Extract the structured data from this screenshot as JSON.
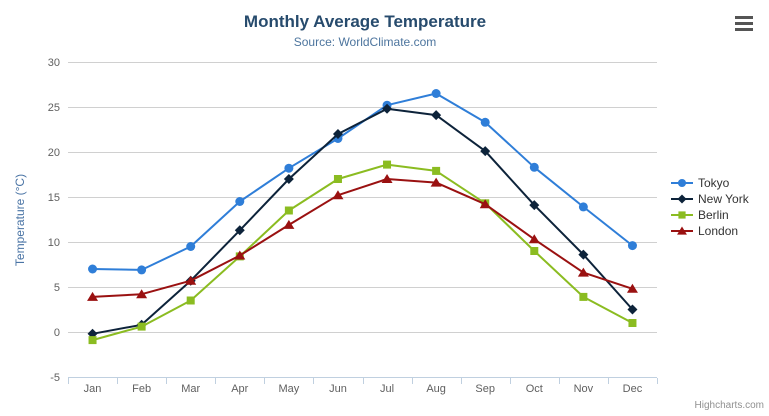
{
  "chart_data": {
    "type": "line",
    "title": "Monthly Average Temperature",
    "subtitle": "Source: WorldClimate.com",
    "xlabel": "",
    "ylabel": "Temperature (°C)",
    "ylim": [
      -5,
      30
    ],
    "yticks": [
      -5,
      0,
      5,
      10,
      15,
      20,
      25,
      30
    ],
    "grid": "horizontal",
    "legend_position": "right",
    "categories": [
      "Jan",
      "Feb",
      "Mar",
      "Apr",
      "May",
      "Jun",
      "Jul",
      "Aug",
      "Sep",
      "Oct",
      "Nov",
      "Dec"
    ],
    "series": [
      {
        "name": "Tokyo",
        "marker": "circle",
        "color": "#2f7ed8",
        "values": [
          7.0,
          6.9,
          9.5,
          14.5,
          18.2,
          21.5,
          25.2,
          26.5,
          23.3,
          18.3,
          13.9,
          9.6
        ]
      },
      {
        "name": "New York",
        "marker": "diamond",
        "color": "#0d233a",
        "values": [
          -0.2,
          0.8,
          5.7,
          11.3,
          17.0,
          22.0,
          24.8,
          24.1,
          20.1,
          14.1,
          8.6,
          2.5
        ]
      },
      {
        "name": "Berlin",
        "marker": "square",
        "color": "#8bbc21",
        "values": [
          -0.9,
          0.6,
          3.5,
          8.4,
          13.5,
          17.0,
          18.6,
          17.9,
          14.3,
          9.0,
          3.9,
          1.0
        ]
      },
      {
        "name": "London",
        "marker": "triangle",
        "color": "#9a1111",
        "values": [
          3.9,
          4.2,
          5.7,
          8.5,
          11.9,
          15.2,
          17.0,
          16.6,
          14.2,
          10.3,
          6.6,
          4.8
        ]
      }
    ]
  },
  "credits": {
    "label": "Highcharts.com"
  },
  "theme": {
    "title_color": "#274b6d",
    "subtitle_color": "#4d759e",
    "axis_title_color": "#4a74a5",
    "axis_label_color": "#606060",
    "grid_color": "#d0d0d0",
    "axis_line_color": "#c0d0e0",
    "legend_text_color": "#333333",
    "credits_color": "#909090",
    "menu_icon_color": "#555555"
  }
}
